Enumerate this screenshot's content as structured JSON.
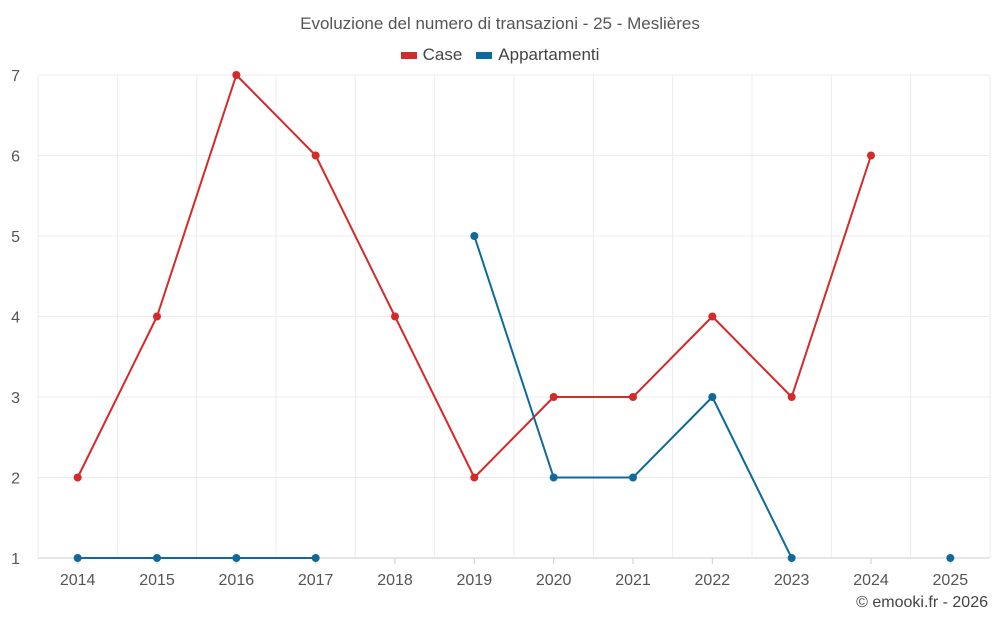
{
  "title": "Evoluzione del numero di transazioni - 25 - Meslières",
  "credit": "© emooki.fr - 2026",
  "chart_data": {
    "type": "line",
    "title": "Evoluzione del numero di transazioni - 25 - Meslières",
    "xlabel": "",
    "ylabel": "",
    "categories": [
      "2014",
      "2015",
      "2016",
      "2017",
      "2018",
      "2019",
      "2020",
      "2021",
      "2022",
      "2023",
      "2024",
      "2025"
    ],
    "ylim": [
      1,
      7
    ],
    "yticks": [
      1,
      2,
      3,
      4,
      5,
      6,
      7
    ],
    "grid": true,
    "legend_position": "top-center",
    "series": [
      {
        "name": "Case",
        "color": "#d42a2a",
        "values": [
          2,
          4,
          7,
          6,
          4,
          2,
          3,
          3,
          4,
          3,
          6,
          null
        ]
      },
      {
        "name": "Appartamenti",
        "color": "#0e6a9c",
        "values": [
          1,
          1,
          1,
          1,
          null,
          5,
          2,
          2,
          3,
          1,
          null,
          1
        ]
      }
    ]
  }
}
